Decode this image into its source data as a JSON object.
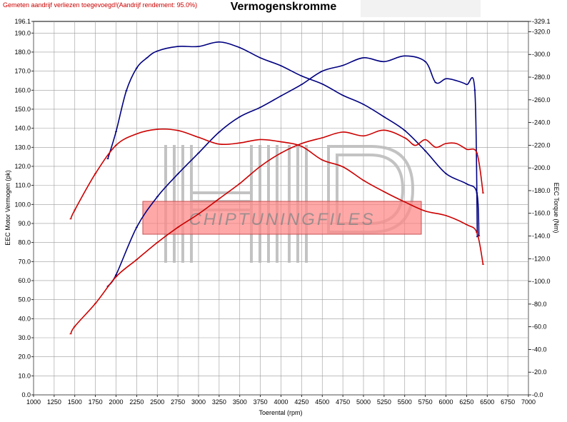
{
  "header": {
    "note": "Gemeten aandrijf verliezen toegevoegd!(Aandrijf rendement: 95.0%)",
    "title": "Vermogenskromme"
  },
  "chart_data": {
    "type": "line",
    "title": "Vermogenskromme",
    "xlabel": "Toerental (rpm)",
    "ylabel_left": "EEC Motor Vermogen (pk)",
    "ylabel_right": "EEC Torque (Nm)",
    "xlim": [
      1000,
      7000
    ],
    "ylim_left": [
      0,
      196.1
    ],
    "ylim_right": [
      0,
      329.1
    ],
    "x_ticks": [
      1000,
      1250,
      1500,
      1750,
      2000,
      2250,
      2500,
      2750,
      3000,
      3250,
      3500,
      3750,
      4000,
      4250,
      4500,
      4750,
      5000,
      5250,
      5500,
      5750,
      6000,
      6250,
      6500,
      6750,
      7000
    ],
    "y_left_ticks": [
      "0.0",
      "10.0",
      "20.0",
      "30.0",
      "40.0",
      "50.0",
      "60.0",
      "70.0",
      "80.0",
      "90.0",
      "100.0",
      "110.0",
      "120.0",
      "130.0",
      "140.0",
      "150.0",
      "160.0",
      "170.0",
      "180.0",
      "190.0",
      "196.1"
    ],
    "y_right_ticks": [
      "0.0",
      "20.0",
      "40.0",
      "60.0",
      "80.0",
      "100.0",
      "120.0",
      "140.0",
      "160.0",
      "180.0",
      "200.0",
      "220.0",
      "240.0",
      "260.0",
      "280.0",
      "300.0",
      "320.0",
      "329.1"
    ],
    "grid": true,
    "series": [
      {
        "color": "#000080",
        "axis": "left",
        "x": [
          1900,
          2000,
          2250,
          2500,
          2750,
          3000,
          3250,
          3500,
          3750,
          4000,
          4250,
          4500,
          4750,
          5000,
          5250,
          5500,
          5750,
          5875,
          6000,
          6125,
          6250,
          6350,
          6380
        ],
        "y": [
          57,
          63,
          88,
          104,
          116,
          127,
          138,
          146,
          151,
          157,
          163,
          170,
          173,
          177,
          175,
          178,
          175,
          164,
          166,
          165,
          163,
          160,
          83
        ]
      },
      {
        "color": "#000080",
        "axis": "right",
        "x": [
          1900,
          2000,
          2125,
          2250,
          2375,
          2500,
          2750,
          3000,
          3250,
          3500,
          3750,
          4000,
          4250,
          4500,
          4750,
          5000,
          5250,
          5500,
          5750,
          6000,
          6250,
          6375,
          6400
        ],
        "y": [
          208,
          232,
          268,
          288,
          297,
          303,
          307,
          307,
          311,
          306,
          297,
          290,
          281,
          274,
          264,
          256,
          245,
          233,
          215,
          195,
          186,
          178,
          140
        ]
      },
      {
        "color": "#cc0000",
        "axis": "left",
        "x": [
          1450,
          1500,
          1750,
          2000,
          2250,
          2500,
          2750,
          3000,
          3250,
          3500,
          3750,
          4000,
          4250,
          4500,
          4750,
          5000,
          5250,
          5500,
          5625,
          5750,
          5875,
          6000,
          6125,
          6250,
          6375,
          6450
        ],
        "y": [
          32,
          36,
          48,
          62,
          71,
          80,
          88,
          95,
          103,
          111,
          120,
          127,
          132,
          135,
          138,
          136,
          139,
          135,
          131,
          134,
          130,
          132,
          132,
          129,
          127,
          106
        ]
      },
      {
        "color": "#cc0000",
        "axis": "right",
        "x": [
          1450,
          1500,
          1750,
          2000,
          2250,
          2500,
          2750,
          3000,
          3250,
          3500,
          3750,
          4000,
          4250,
          4500,
          4750,
          5000,
          5250,
          5500,
          5750,
          6000,
          6250,
          6375,
          6450
        ],
        "y": [
          155,
          163,
          195,
          220,
          230,
          234,
          233,
          227,
          221,
          222,
          225,
          223,
          219,
          207,
          201,
          189,
          179,
          170,
          162,
          158,
          150,
          143,
          115
        ]
      }
    ]
  }
}
